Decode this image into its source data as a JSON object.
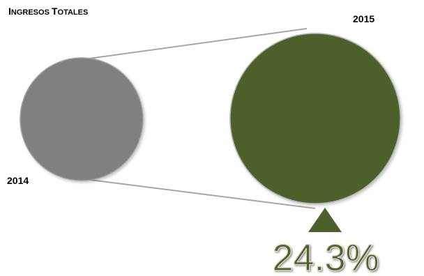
{
  "chart_data": {
    "type": "bubble-comparison",
    "title": "Ingresos Totales",
    "title_display": {
      "first_big": "I",
      "rest": "NGRESOS ",
      "second_big": "T",
      "rest2": "OTALES"
    },
    "categories": [
      "2014",
      "2015"
    ],
    "growth_percent": 24.3,
    "growth_label": "24.3%",
    "indicator": "up-triangle",
    "colors": {
      "2014": "#808080",
      "2015": "#4e5f2b",
      "connector": "#a6a6a6",
      "growth_text": "#4e5f2b",
      "growth_outline": "#d8dcc8"
    }
  }
}
